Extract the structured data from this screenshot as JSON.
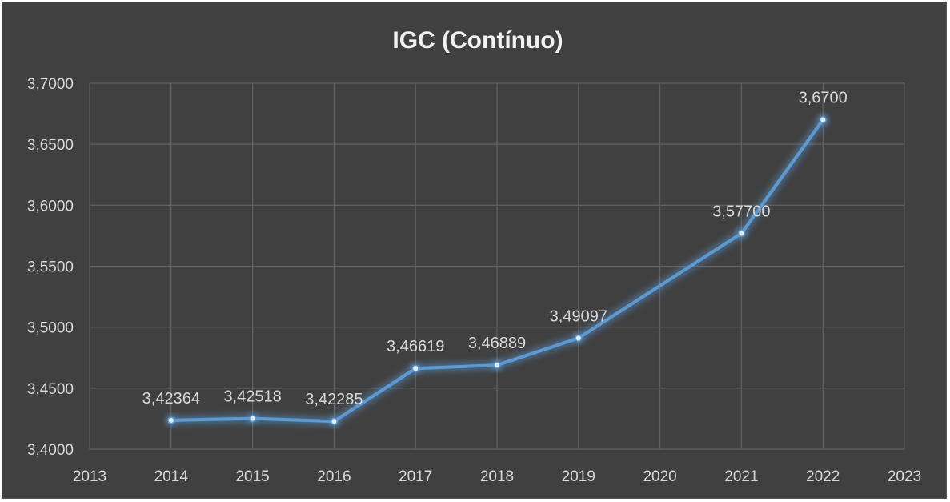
{
  "chart_data": {
    "type": "line",
    "title": "IGC (Contínuo)",
    "xlabel": "",
    "ylabel": "",
    "xlim": [
      2013,
      2023
    ],
    "ylim": [
      3.4,
      3.7
    ],
    "x_ticks": [
      "2013",
      "2014",
      "2015",
      "2016",
      "2017",
      "2018",
      "2019",
      "2020",
      "2021",
      "2022",
      "2023"
    ],
    "y_ticks": [
      "3,4000",
      "3,4500",
      "3,5000",
      "3,5500",
      "3,6000",
      "3,6500",
      "3,7000"
    ],
    "grid": true,
    "legend": "none",
    "series": [
      {
        "color": "#5b9bd5",
        "points": [
          {
            "x": 2014,
            "y": 3.42364,
            "label": "3,42364"
          },
          {
            "x": 2015,
            "y": 3.42518,
            "label": "3,42518"
          },
          {
            "x": 2016,
            "y": 3.42285,
            "label": "3,42285"
          },
          {
            "x": 2017,
            "y": 3.46619,
            "label": "3,46619"
          },
          {
            "x": 2018,
            "y": 3.46889,
            "label": "3,46889"
          },
          {
            "x": 2019,
            "y": 3.49097,
            "label": "3,49097"
          },
          {
            "x": 2021,
            "y": 3.577,
            "label": "3,57700"
          },
          {
            "x": 2022,
            "y": 3.67,
            "label": "3,6700"
          }
        ]
      }
    ]
  }
}
